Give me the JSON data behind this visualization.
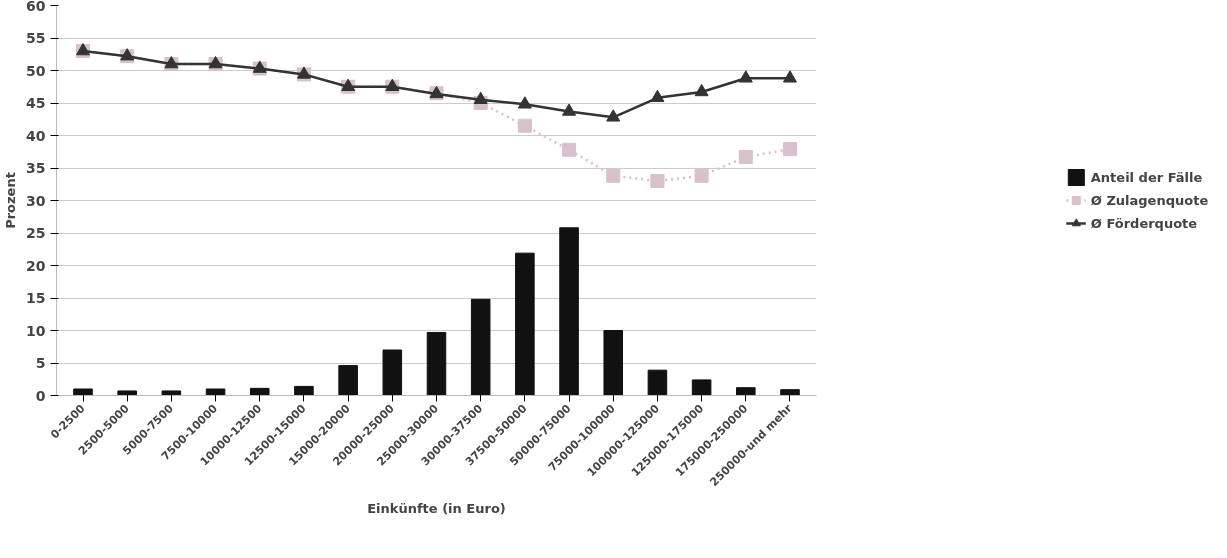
{
  "chart_data": {
    "type": "bar",
    "xlabel": "Einkünfte (in Euro)",
    "ylabel": "Prozent",
    "categories": [
      "0-2500",
      "2500-5000",
      "5000-7500",
      "7500-10000",
      "10000-12500",
      "12500-15000",
      "15000-20000",
      "20000-25000",
      "25000-30000",
      "30000-37500",
      "37500-50000",
      "50000-75000",
      "75000-100000",
      "100000-125000",
      "125000-175000",
      "175000-250000",
      "250000-und mehr"
    ],
    "ylim": [
      0,
      60
    ],
    "yticks": [
      0,
      5,
      10,
      15,
      20,
      25,
      30,
      35,
      40,
      45,
      50,
      55,
      60
    ],
    "grid": "y",
    "legend": "right",
    "series": [
      {
        "name": "Anteil der Fälle",
        "color": "#111111",
        "values": [
          1.0,
          0.7,
          0.7,
          1.0,
          1.1,
          1.4,
          4.6,
          7.0,
          9.7,
          14.8,
          21.9,
          25.8,
          10.0,
          3.9,
          2.4,
          1.2,
          0.9
        ]
      },
      {
        "name": "Ø Zulagenquote",
        "type": "line",
        "color": "#d8c0cc",
        "marker": "square",
        "line_style": "dotted",
        "values": [
          53,
          52.2,
          51,
          51,
          50.3,
          49.4,
          47.5,
          47.5,
          46.5,
          45,
          41.5,
          37.8,
          33.8,
          33,
          33.8,
          36.7,
          37.9
        ]
      },
      {
        "name": "Ø Förderquote",
        "type": "line",
        "color": "#333333",
        "marker": "triangle",
        "line_style": "solid",
        "values": [
          53,
          52.2,
          51,
          51,
          50.3,
          49.4,
          47.5,
          47.5,
          46.4,
          45.5,
          44.8,
          43.7,
          42.8,
          45.8,
          46.7,
          48.8,
          48.8
        ]
      }
    ]
  }
}
